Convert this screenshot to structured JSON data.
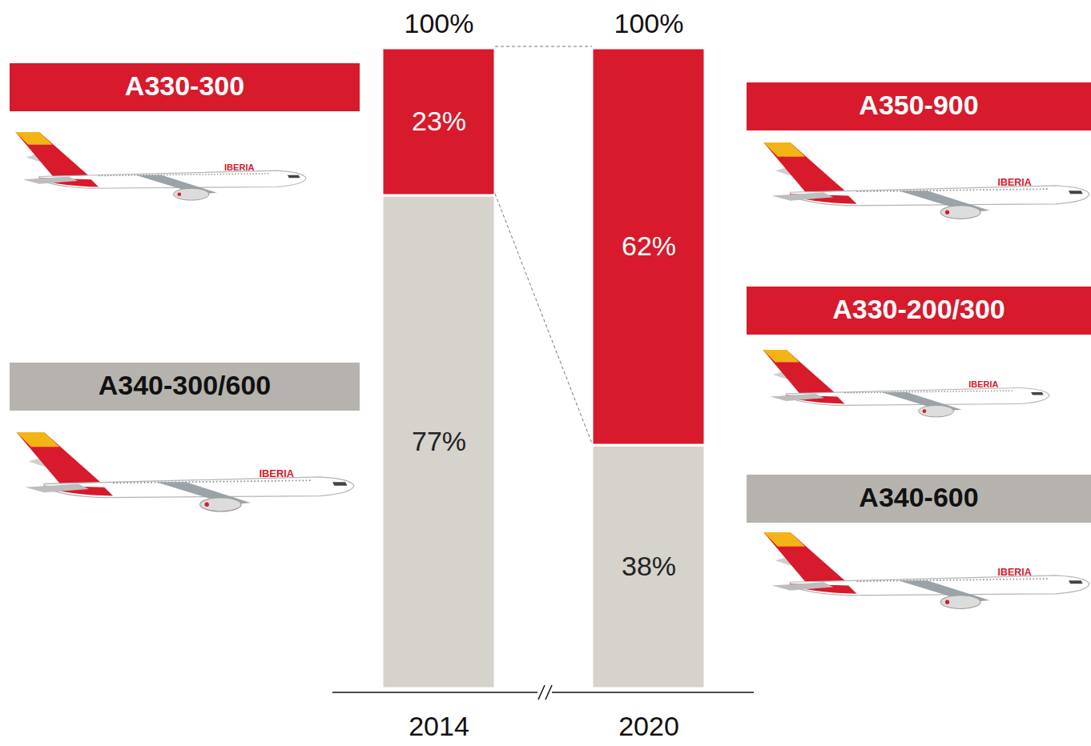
{
  "chart_data": {
    "type": "bar",
    "stacked": true,
    "categories": [
      "2014",
      "2020"
    ],
    "ylim": [
      0,
      100
    ],
    "yticks": [],
    "tick_labels": "x",
    "data_labels": true,
    "series": [
      {
        "color": "#d6d2cc",
        "values": [
          77,
          38
        ],
        "value_labels": [
          "77%",
          "38%"
        ],
        "labels": [
          [
            "A340-300/600"
          ],
          [
            "A340-600"
          ]
        ]
      },
      {
        "color": "#d71a2c",
        "values": [
          23,
          62
        ],
        "value_labels": [
          "23%",
          "62%"
        ],
        "labels": [
          [
            "A330-300"
          ],
          [
            "A350-900",
            "A330-200/300"
          ]
        ]
      }
    ],
    "totals": [
      100,
      100
    ],
    "total_labels": [
      "100%",
      "100%"
    ],
    "aircraft_livery": "IBERIA"
  }
}
